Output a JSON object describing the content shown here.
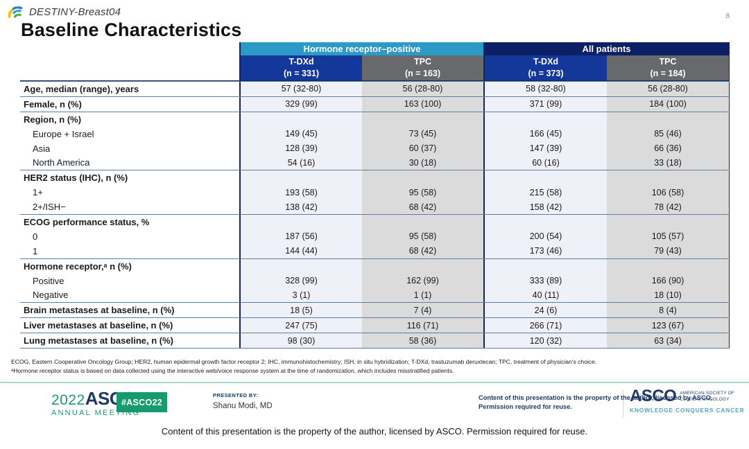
{
  "slide": {
    "logo_label": "DESTINY-Breast04",
    "page_number": "8",
    "title": "Baseline Characteristics"
  },
  "table": {
    "group_headers": [
      {
        "label": "Hormone receptor–positive"
      },
      {
        "label": "All patients"
      }
    ],
    "column_headers": [
      {
        "name": "T-DXd",
        "n": "(n = 331)"
      },
      {
        "name": "TPC",
        "n": "(n = 163)"
      },
      {
        "name": "T-DXd",
        "n": "(n = 373)"
      },
      {
        "name": "TPC",
        "n": "(n = 184)"
      }
    ],
    "rows": [
      {
        "label": "Age, median (range), years",
        "bold": true,
        "section_start": true,
        "values": [
          "57 (32-80)",
          "56 (28-80)",
          "58 (32-80)",
          "56 (28-80)"
        ]
      },
      {
        "label": "Female, n (%)",
        "bold": true,
        "section_start": true,
        "values": [
          "329 (99)",
          "163 (100)",
          "371 (99)",
          "184 (100)"
        ]
      },
      {
        "label": "Region, n (%)",
        "bold": true,
        "section_start": true,
        "values": [
          "",
          "",
          "",
          ""
        ]
      },
      {
        "label": "Europe + Israel",
        "bold": false,
        "section_start": false,
        "values": [
          "149 (45)",
          "73 (45)",
          "166 (45)",
          "85 (46)"
        ]
      },
      {
        "label": "Asia",
        "bold": false,
        "section_start": false,
        "values": [
          "128 (39)",
          "60 (37)",
          "147 (39)",
          "66 (36)"
        ]
      },
      {
        "label": "North America",
        "bold": false,
        "section_start": false,
        "values": [
          "54 (16)",
          "30 (18)",
          "60 (16)",
          "33 (18)"
        ]
      },
      {
        "label": "HER2 status (IHC), n (%)",
        "bold": true,
        "section_start": true,
        "values": [
          "",
          "",
          "",
          ""
        ]
      },
      {
        "label": "1+",
        "bold": false,
        "section_start": false,
        "values": [
          "193 (58)",
          "95 (58)",
          "215 (58)",
          "106 (58)"
        ]
      },
      {
        "label": "2+/ISH−",
        "bold": false,
        "section_start": false,
        "values": [
          "138 (42)",
          "68 (42)",
          "158 (42)",
          "78 (42)"
        ]
      },
      {
        "label": "ECOG performance status, %",
        "bold": true,
        "section_start": true,
        "values": [
          "",
          "",
          "",
          ""
        ]
      },
      {
        "label": "0",
        "bold": false,
        "section_start": false,
        "values": [
          "187 (56)",
          "95 (58)",
          "200 (54)",
          "105 (57)"
        ]
      },
      {
        "label": "1",
        "bold": false,
        "section_start": false,
        "values": [
          "144 (44)",
          "68 (42)",
          "173 (46)",
          "79 (43)"
        ]
      },
      {
        "label": "Hormone receptor,ᵃ n (%)",
        "bold": true,
        "section_start": true,
        "values": [
          "",
          "",
          "",
          ""
        ]
      },
      {
        "label": "Positive",
        "bold": false,
        "section_start": false,
        "values": [
          "328 (99)",
          "162 (99)",
          "333 (89)",
          "166 (90)"
        ]
      },
      {
        "label": "Negative",
        "bold": false,
        "section_start": false,
        "values": [
          "3 (1)",
          "1 (1)",
          "40 (11)",
          "18 (10)"
        ]
      },
      {
        "label": "Brain metastases at baseline, n (%)",
        "bold": true,
        "section_start": true,
        "values": [
          "18 (5)",
          "7 (4)",
          "24 (6)",
          "8 (4)"
        ]
      },
      {
        "label": "Liver metastases at baseline, n (%)",
        "bold": true,
        "section_start": true,
        "values": [
          "247 (75)",
          "116 (71)",
          "266 (71)",
          "123 (67)"
        ]
      },
      {
        "label": "Lung metastases at baseline, n (%)",
        "bold": true,
        "section_start": true,
        "values": [
          "98 (30)",
          "58 (36)",
          "120 (32)",
          "63 (34)"
        ]
      }
    ]
  },
  "footnotes": {
    "line1": "ECOG, Eastern Cooperative Oncology Group; HER2, human epidermal growth factor receptor 2; IHC, immunohistochemistry; ISH, in situ hybridization; T-DXd, trastuzumab deruxtecan; TPC, treatment of physician's choice.",
    "line2": "ᵃHormone receptor status is based on data collected using the interactive web/voice response system at the time of randomization, which includes misstratified patients."
  },
  "footer": {
    "meeting_year": "2022",
    "meeting_name": "ASCO",
    "meeting_sub": "ANNUAL MEETING",
    "hashtag": "#ASCO22",
    "presented_by_label": "PRESENTED BY:",
    "presenter": "Shanu Modi, MD",
    "notice": "Content of this presentation is the property of the author, licensed by ASCO. Permission required for reuse.",
    "asco_wordmark": "ASCO",
    "asco_society_line1": "AMERICAN SOCIETY OF",
    "asco_society_line2": "CLINICAL ONCOLOGY",
    "asco_tagline": "KNOWLEDGE CONQUERS CANCER"
  },
  "bottom_caption": "Content of this presentation is the property of the author, licensed by ASCO. Permission required for reuse.",
  "colors": {
    "teal_header": "#2B9AC6",
    "navy_header": "#0C2066",
    "tdxd_blue": "#14389A",
    "tpc_gray": "#67696C",
    "tdxd_bg": "#EEF1F7",
    "tpc_bg": "#DBDBDC",
    "divider_navy": "#12265E",
    "section_line": "#5F7E9E",
    "sep_teal": "#ABD6D3",
    "asco_green": "#189A6F",
    "asco_navy": "#1E3866",
    "asco_teal": "#49A7C4"
  }
}
